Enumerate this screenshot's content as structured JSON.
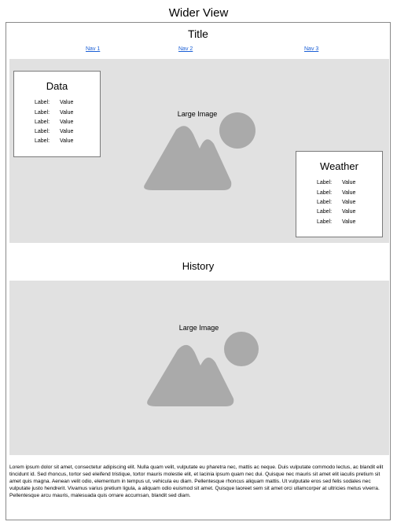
{
  "page_heading": "Wider View",
  "site": {
    "title": "Title",
    "nav": [
      {
        "label": "Nav 1"
      },
      {
        "label": "Nav 2"
      },
      {
        "label": "Nav 3"
      }
    ]
  },
  "hero": {
    "caption": "Large Image",
    "icon": "image-placeholder-icon",
    "data_card": {
      "title": "Data",
      "rows": [
        {
          "label": "Label:",
          "value": "Value"
        },
        {
          "label": "Label:",
          "value": "Value"
        },
        {
          "label": "Label:",
          "value": "Value"
        },
        {
          "label": "Label:",
          "value": "Value"
        },
        {
          "label": "Label:",
          "value": "Value"
        }
      ]
    },
    "weather_card": {
      "title": "Weather",
      "rows": [
        {
          "label": "Label:",
          "value": "Value"
        },
        {
          "label": "Label:",
          "value": "Value"
        },
        {
          "label": "Label:",
          "value": "Value"
        },
        {
          "label": "Label:",
          "value": "Value"
        },
        {
          "label": "Label:",
          "value": "Value"
        }
      ]
    }
  },
  "history": {
    "title": "History",
    "caption": "Large Image",
    "icon": "image-placeholder-icon",
    "body": "Lorem ipsum dolor sit amet, consectetur adipiscing elit. Nulla quam velit, vulputate eu pharetra nec, mattis ac neque. Duis vulputate commodo lectus, ac blandit elit tincidunt id. Sed rhoncus, tortor sed eleifend tristique, tortor mauris molestie elit, et lacinia ipsum quam nec dui. Quisque nec mauris sit amet elit iaculis pretium sit amet quis magna. Aenean velit odio, elementum in tempus ut, vehicula eu diam. Pellentesque rhoncus aliquam mattis. Ut vulputate eros sed felis sodales nec vulputate justo hendrerit. Vivamus varius pretium ligula, a aliquam odio euismod sit amet. Quisque laoreet sem sit amet orci ullamcorper at ultricies metus viverra. Pellentesque arcu mauris, malesuada quis ornare accumsan, blandit sed diam."
  },
  "colors": {
    "placeholder_fill": "#aaaaaa",
    "image_background": "#e1e1e1",
    "link": "#1a5fd6"
  }
}
